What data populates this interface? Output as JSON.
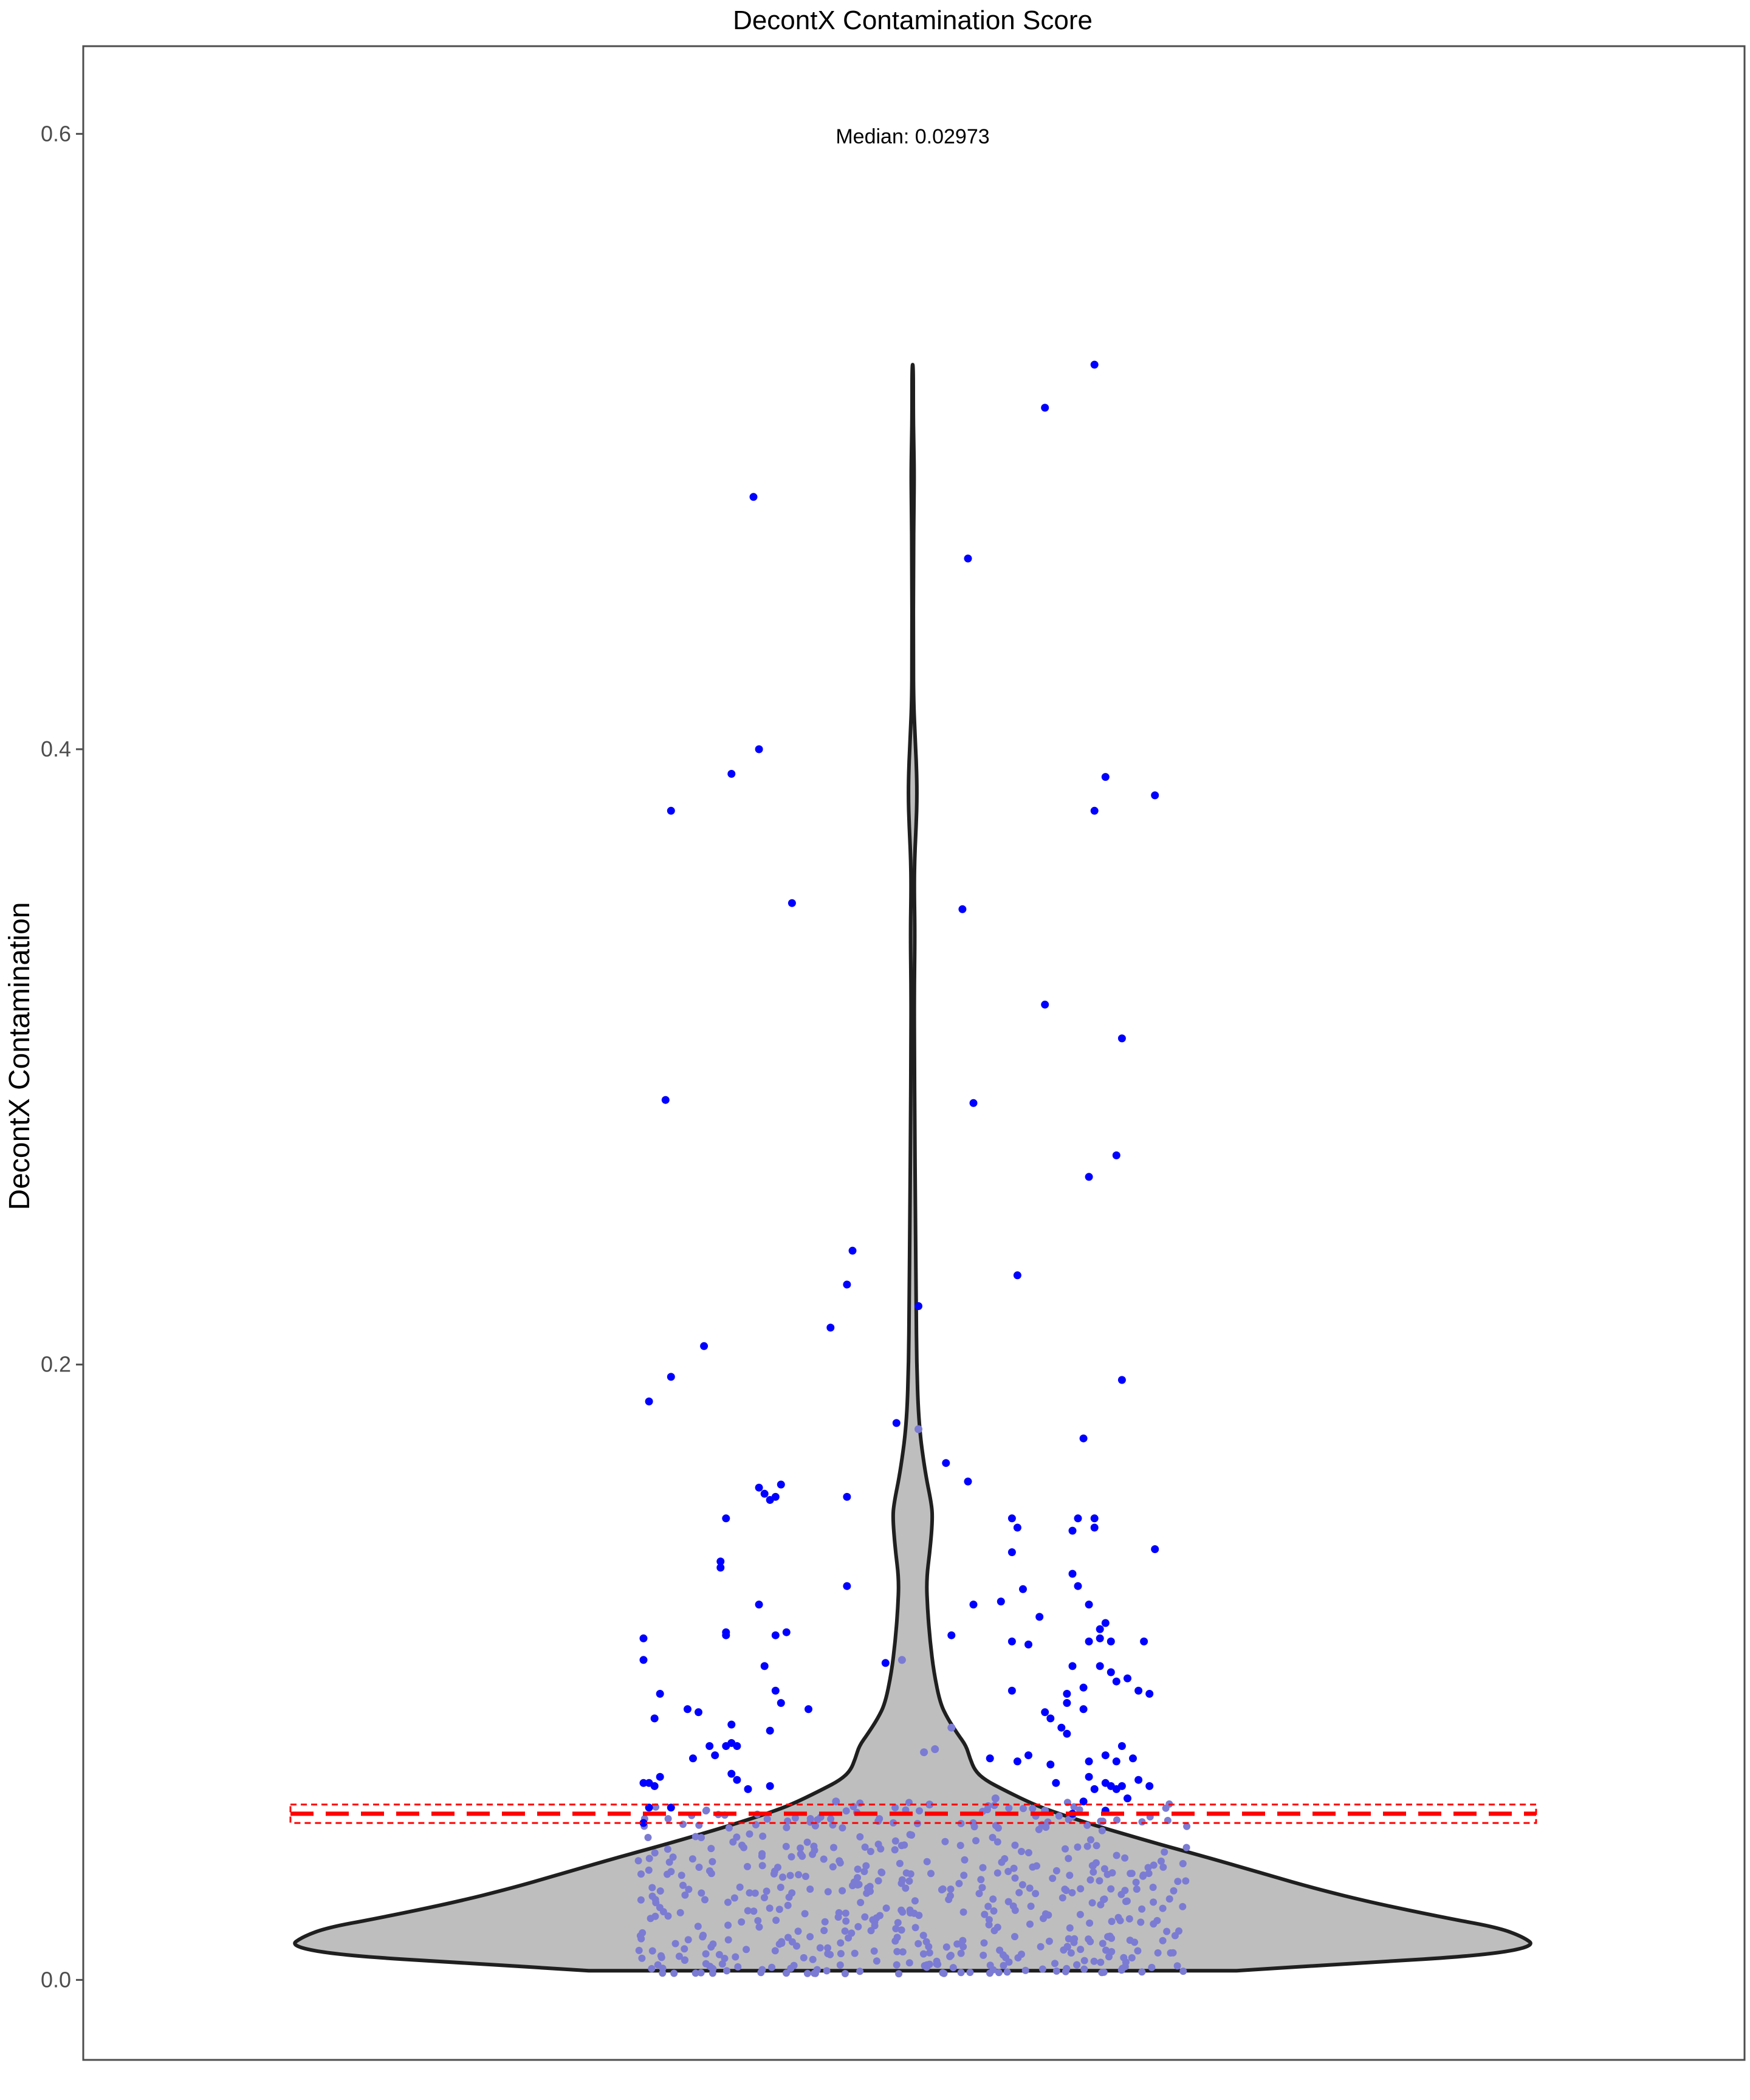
{
  "colors": {
    "background": "#ffffff",
    "panel_border": "#4d4d4d",
    "violin_fill": "#bebebe",
    "violin_stroke": "#1f1f1f",
    "point_outlier": "#0000ff",
    "point_inner": "#7b7bd4",
    "threshold": "#ff0000",
    "tick_text": "#4d4d4d"
  },
  "chart_data": {
    "type": "violin",
    "title": "DecontX Contamination Score",
    "ylabel": "DecontX Contamination",
    "xlabel": "",
    "ylim": [
      -0.026,
      0.6285
    ],
    "yticks": [
      0.0,
      0.2,
      0.4,
      0.6
    ],
    "ytick_labels": [
      "0.0",
      "0.2",
      "0.4",
      "0.6"
    ],
    "grid": false,
    "annotation": "Median: 0.02973",
    "median": 0.02973,
    "threshold": 0.054,
    "threshold_band": [
      0.051,
      0.057
    ],
    "violin": {
      "min": 0.003,
      "max": 0.525,
      "density_profile": [
        [
          0.003,
          0.26
        ],
        [
          0.0055,
          0.36
        ],
        [
          0.008,
          0.46
        ],
        [
          0.011,
          0.5
        ],
        [
          0.014,
          0.49
        ],
        [
          0.017,
          0.47
        ],
        [
          0.02,
          0.43
        ],
        [
          0.025,
          0.37
        ],
        [
          0.03,
          0.32
        ],
        [
          0.035,
          0.278
        ],
        [
          0.04,
          0.235
        ],
        [
          0.045,
          0.19
        ],
        [
          0.05,
          0.148
        ],
        [
          0.055,
          0.11
        ],
        [
          0.058,
          0.092
        ],
        [
          0.062,
          0.072
        ],
        [
          0.065,
          0.058
        ],
        [
          0.068,
          0.05
        ],
        [
          0.072,
          0.046
        ],
        [
          0.076,
          0.043
        ],
        [
          0.08,
          0.036
        ],
        [
          0.085,
          0.028
        ],
        [
          0.09,
          0.022
        ],
        [
          0.1,
          0.017
        ],
        [
          0.11,
          0.014
        ],
        [
          0.12,
          0.012
        ],
        [
          0.13,
          0.011
        ],
        [
          0.14,
          0.014
        ],
        [
          0.15,
          0.016
        ],
        [
          0.155,
          0.015
        ],
        [
          0.165,
          0.01
        ],
        [
          0.18,
          0.005
        ],
        [
          0.2,
          0.0032
        ],
        [
          0.22,
          0.0028
        ],
        [
          0.25,
          0.0022
        ],
        [
          0.28,
          0.0016
        ],
        [
          0.3,
          0.0014
        ],
        [
          0.32,
          0.0012
        ],
        [
          0.34,
          0.0018
        ],
        [
          0.355,
          0.0012
        ],
        [
          0.365,
          0.0016
        ],
        [
          0.375,
          0.0028
        ],
        [
          0.385,
          0.0035
        ],
        [
          0.395,
          0.003
        ],
        [
          0.405,
          0.0018
        ],
        [
          0.415,
          0.0008
        ],
        [
          0.43,
          0.0005
        ],
        [
          0.46,
          0.0006
        ],
        [
          0.48,
          0.001
        ],
        [
          0.49,
          0.0012
        ],
        [
          0.5,
          0.0008
        ],
        [
          0.51,
          0.0005
        ],
        [
          0.525,
          0.0005
        ]
      ]
    },
    "points": [
      [
        0.83,
        0.525
      ],
      [
        0.21,
        0.482
      ],
      [
        0.74,
        0.511
      ],
      [
        0.6,
        0.462
      ],
      [
        0.22,
        0.4
      ],
      [
        0.85,
        0.391
      ],
      [
        0.17,
        0.392
      ],
      [
        0.06,
        0.38
      ],
      [
        0.83,
        0.38
      ],
      [
        0.94,
        0.385
      ],
      [
        0.28,
        0.35
      ],
      [
        0.59,
        0.348
      ],
      [
        0.74,
        0.317
      ],
      [
        0.88,
        0.306
      ],
      [
        0.05,
        0.286
      ],
      [
        0.61,
        0.285
      ],
      [
        0.82,
        0.261
      ],
      [
        0.87,
        0.268
      ],
      [
        0.39,
        0.237
      ],
      [
        0.38,
        0.226
      ],
      [
        0.69,
        0.229
      ],
      [
        0.51,
        0.219
      ],
      [
        0.35,
        0.212
      ],
      [
        0.12,
        0.206
      ],
      [
        0.88,
        0.195
      ],
      [
        0.02,
        0.188
      ],
      [
        0.06,
        0.196
      ],
      [
        0.47,
        0.181
      ],
      [
        0.51,
        0.179
      ],
      [
        0.81,
        0.176
      ],
      [
        0.56,
        0.168
      ],
      [
        0.6,
        0.162
      ],
      [
        0.22,
        0.16
      ],
      [
        0.23,
        0.158
      ],
      [
        0.24,
        0.156
      ],
      [
        0.25,
        0.157
      ],
      [
        0.26,
        0.161
      ],
      [
        0.38,
        0.157
      ],
      [
        0.16,
        0.15
      ],
      [
        0.68,
        0.15
      ],
      [
        0.69,
        0.147
      ],
      [
        0.8,
        0.15
      ],
      [
        0.83,
        0.15
      ],
      [
        0.83,
        0.147
      ],
      [
        0.79,
        0.146
      ],
      [
        0.94,
        0.14
      ],
      [
        0.68,
        0.139
      ],
      [
        0.15,
        0.134
      ],
      [
        0.15,
        0.136
      ],
      [
        0.79,
        0.132
      ],
      [
        0.8,
        0.128
      ],
      [
        0.38,
        0.128
      ],
      [
        0.7,
        0.127
      ],
      [
        0.22,
        0.122
      ],
      [
        0.66,
        0.123
      ],
      [
        0.61,
        0.122
      ],
      [
        0.73,
        0.118
      ],
      [
        0.82,
        0.122
      ],
      [
        0.85,
        0.116
      ],
      [
        0.84,
        0.114
      ],
      [
        0.92,
        0.11
      ],
      [
        0.16,
        0.112
      ],
      [
        0.16,
        0.113
      ],
      [
        0.25,
        0.112
      ],
      [
        0.27,
        0.113
      ],
      [
        0.84,
        0.111
      ],
      [
        0.82,
        0.11
      ],
      [
        0.86,
        0.11
      ],
      [
        0.57,
        0.112
      ],
      [
        0.01,
        0.111
      ],
      [
        0.01,
        0.104
      ],
      [
        0.48,
        0.104
      ],
      [
        0.45,
        0.103
      ],
      [
        0.68,
        0.11
      ],
      [
        0.71,
        0.109
      ],
      [
        0.79,
        0.102
      ],
      [
        0.84,
        0.102
      ],
      [
        0.86,
        0.1
      ],
      [
        0.87,
        0.097
      ],
      [
        0.23,
        0.102
      ],
      [
        0.25,
        0.094
      ],
      [
        0.04,
        0.093
      ],
      [
        0.68,
        0.094
      ],
      [
        0.78,
        0.093
      ],
      [
        0.91,
        0.094
      ],
      [
        0.93,
        0.093
      ],
      [
        0.81,
        0.095
      ],
      [
        0.89,
        0.098
      ],
      [
        0.09,
        0.088
      ],
      [
        0.11,
        0.087
      ],
      [
        0.26,
        0.09
      ],
      [
        0.31,
        0.088
      ],
      [
        0.74,
        0.087
      ],
      [
        0.78,
        0.09
      ],
      [
        0.17,
        0.083
      ],
      [
        0.75,
        0.085
      ],
      [
        0.81,
        0.088
      ],
      [
        0.03,
        0.085
      ],
      [
        0.24,
        0.081
      ],
      [
        0.77,
        0.082
      ],
      [
        0.78,
        0.08
      ],
      [
        0.13,
        0.076
      ],
      [
        0.16,
        0.076
      ],
      [
        0.17,
        0.077
      ],
      [
        0.18,
        0.076
      ],
      [
        0.85,
        0.073
      ],
      [
        0.82,
        0.071
      ],
      [
        0.87,
        0.071
      ],
      [
        0.88,
        0.076
      ],
      [
        0.9,
        0.072
      ],
      [
        0.71,
        0.073
      ],
      [
        0.57,
        0.082
      ],
      [
        0.52,
        0.074
      ],
      [
        0.54,
        0.075
      ],
      [
        0.64,
        0.072
      ],
      [
        0.69,
        0.071
      ],
      [
        0.1,
        0.072
      ],
      [
        0.14,
        0.073
      ],
      [
        0.18,
        0.065
      ],
      [
        0.17,
        0.067
      ],
      [
        0.75,
        0.07
      ],
      [
        0.82,
        0.066
      ],
      [
        0.85,
        0.064
      ],
      [
        0.86,
        0.063
      ],
      [
        0.91,
        0.065
      ],
      [
        0.01,
        0.064
      ],
      [
        0.04,
        0.066
      ],
      [
        0.03,
        0.063
      ],
      [
        0.02,
        0.064
      ],
      [
        0.2,
        0.062
      ],
      [
        0.24,
        0.063
      ],
      [
        0.76,
        0.064
      ],
      [
        0.83,
        0.062
      ],
      [
        0.87,
        0.062
      ],
      [
        0.88,
        0.063
      ],
      [
        0.93,
        0.063
      ],
      [
        0.81,
        0.058
      ],
      [
        0.02,
        0.056
      ],
      [
        0.06,
        0.056
      ],
      [
        0.36,
        0.058
      ],
      [
        0.53,
        0.057
      ],
      [
        0.89,
        0.059
      ],
      [
        0.65,
        0.059
      ],
      [
        0.01,
        0.051
      ],
      [
        0.74,
        0.055
      ],
      [
        0.79,
        0.054
      ],
      [
        0.85,
        0.055
      ]
    ]
  }
}
